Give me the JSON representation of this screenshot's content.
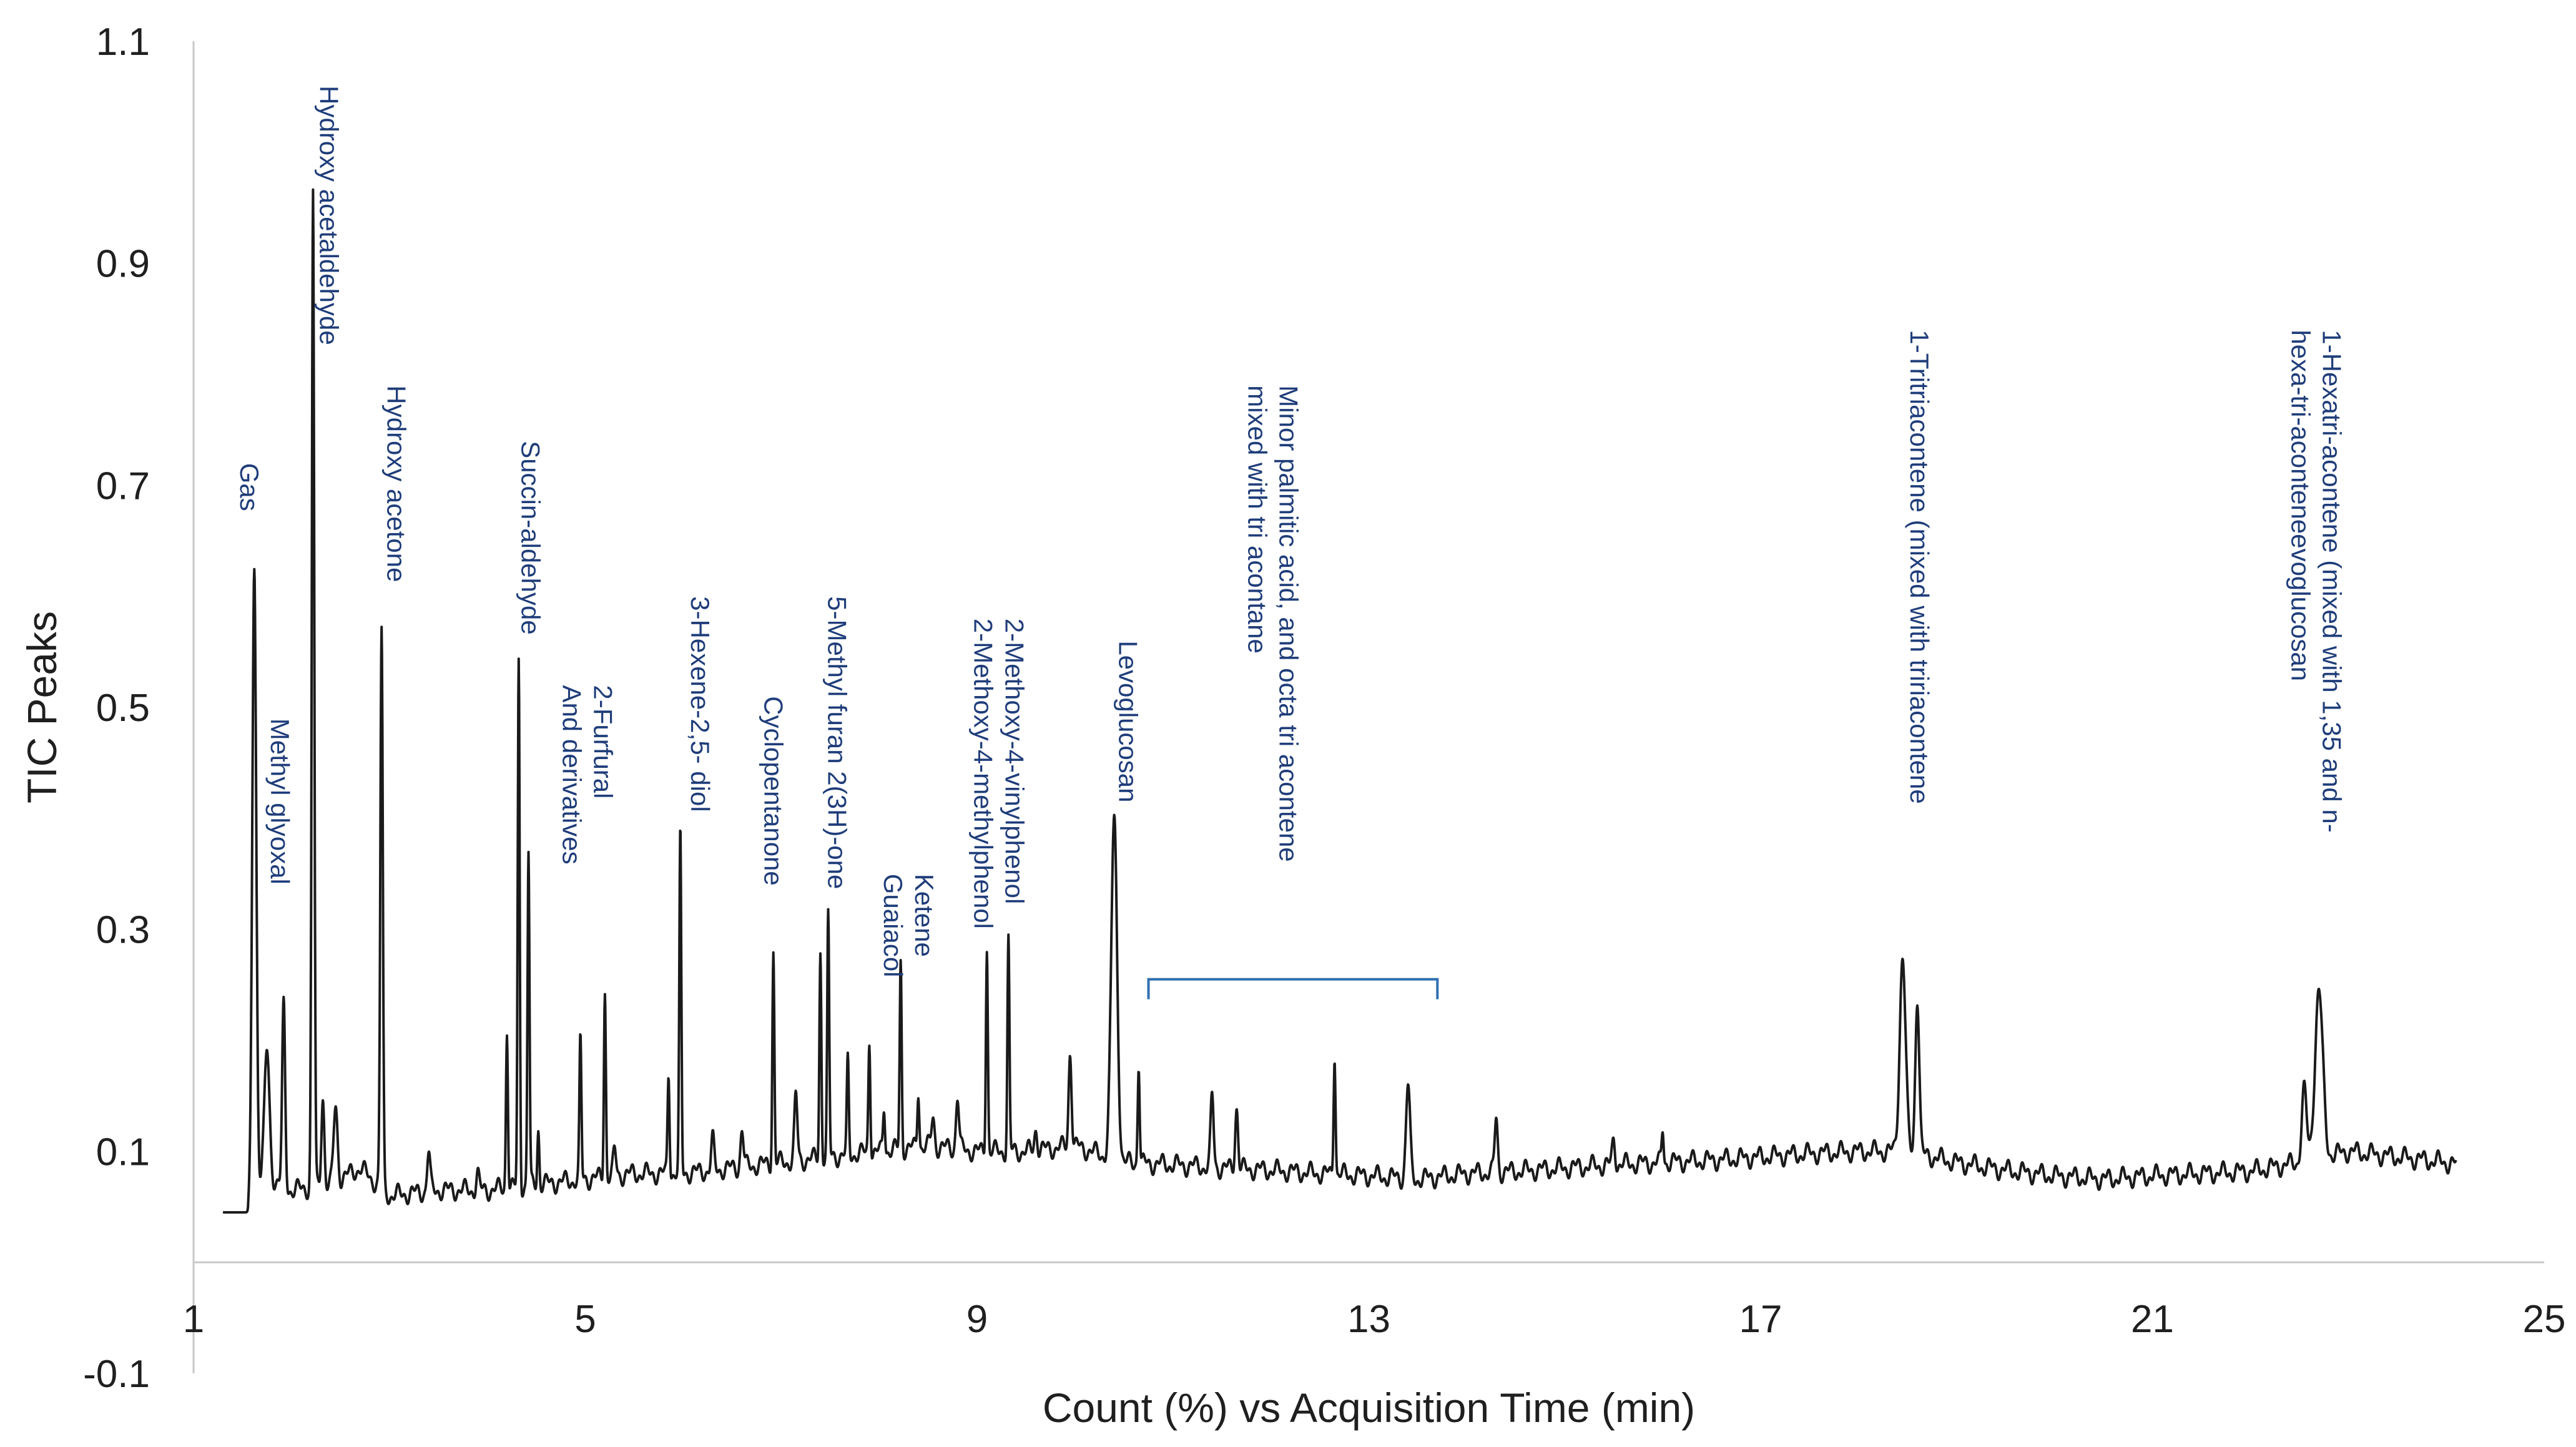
{
  "chart_data": {
    "type": "line",
    "title": "",
    "xlabel": "Count (%) vs Acquisition Time (min)",
    "ylabel": "TIC Peaks",
    "xlim": [
      1,
      25
    ],
    "ylim": [
      -0.1,
      1.1
    ],
    "x_ticks": [
      1,
      5,
      9,
      13,
      17,
      21,
      25
    ],
    "y_ticks": [
      -0.1,
      0.1,
      0.3,
      0.5,
      0.7,
      0.9,
      1.1
    ],
    "x_tick_labels": [
      "1",
      "5",
      "9",
      "13",
      "17",
      "21",
      "25"
    ],
    "y_tick_labels": [
      "-0.1",
      "0.1",
      "0.3",
      "0.5",
      "0.7",
      "0.9",
      "1.1"
    ],
    "grid": false,
    "baseline": [
      [
        1.3,
        0.045
      ],
      [
        1.55,
        0.045
      ],
      [
        1.7,
        0.08
      ],
      [
        2.0,
        0.065
      ],
      [
        2.4,
        0.07
      ],
      [
        2.7,
        0.085
      ],
      [
        3.0,
        0.06
      ],
      [
        3.5,
        0.065
      ],
      [
        4.0,
        0.065
      ],
      [
        4.5,
        0.07
      ],
      [
        5.0,
        0.075
      ],
      [
        5.5,
        0.08
      ],
      [
        6.0,
        0.08
      ],
      [
        6.5,
        0.085
      ],
      [
        7.0,
        0.09
      ],
      [
        7.5,
        0.095
      ],
      [
        8.0,
        0.1
      ],
      [
        8.5,
        0.105
      ],
      [
        9.0,
        0.1
      ],
      [
        9.5,
        0.1
      ],
      [
        10.0,
        0.105
      ],
      [
        10.5,
        0.09
      ],
      [
        11.0,
        0.088
      ],
      [
        11.5,
        0.085
      ],
      [
        12.0,
        0.083
      ],
      [
        12.5,
        0.08
      ],
      [
        13.0,
        0.078
      ],
      [
        13.5,
        0.075
      ],
      [
        14.0,
        0.08
      ],
      [
        14.5,
        0.082
      ],
      [
        15.0,
        0.085
      ],
      [
        15.5,
        0.088
      ],
      [
        16.0,
        0.09
      ],
      [
        16.5,
        0.092
      ],
      [
        17.0,
        0.095
      ],
      [
        17.5,
        0.098
      ],
      [
        18.0,
        0.1
      ],
      [
        18.5,
        0.1
      ],
      [
        19.0,
        0.09
      ],
      [
        19.5,
        0.083
      ],
      [
        20.0,
        0.078
      ],
      [
        20.5,
        0.075
      ],
      [
        21.0,
        0.078
      ],
      [
        21.5,
        0.08
      ],
      [
        22.0,
        0.082
      ],
      [
        22.5,
        0.09
      ],
      [
        23.0,
        0.1
      ],
      [
        23.5,
        0.095
      ],
      [
        24.0,
        0.09
      ],
      [
        24.1,
        0.088
      ]
    ],
    "peaks": [
      {
        "x": 1.62,
        "y": 0.63,
        "w": 0.04
      },
      {
        "x": 1.75,
        "y": 0.19,
        "w": 0.05
      },
      {
        "x": 1.92,
        "y": 0.23,
        "w": 0.03
      },
      {
        "x": 2.22,
        "y": 0.965,
        "w": 0.025
      },
      {
        "x": 2.32,
        "y": 0.15,
        "w": 0.03
      },
      {
        "x": 2.45,
        "y": 0.14,
        "w": 0.04
      },
      {
        "x": 2.92,
        "y": 0.57,
        "w": 0.025
      },
      {
        "x": 3.4,
        "y": 0.1,
        "w": 0.03
      },
      {
        "x": 3.9,
        "y": 0.08,
        "w": 0.03
      },
      {
        "x": 4.2,
        "y": 0.21,
        "w": 0.02
      },
      {
        "x": 4.32,
        "y": 0.54,
        "w": 0.02
      },
      {
        "x": 4.42,
        "y": 0.37,
        "w": 0.02
      },
      {
        "x": 4.52,
        "y": 0.12,
        "w": 0.02
      },
      {
        "x": 4.95,
        "y": 0.2,
        "w": 0.02
      },
      {
        "x": 5.2,
        "y": 0.245,
        "w": 0.02
      },
      {
        "x": 5.3,
        "y": 0.1,
        "w": 0.03
      },
      {
        "x": 5.85,
        "y": 0.17,
        "w": 0.02
      },
      {
        "x": 5.97,
        "y": 0.385,
        "w": 0.02
      },
      {
        "x": 6.3,
        "y": 0.11,
        "w": 0.03
      },
      {
        "x": 6.6,
        "y": 0.12,
        "w": 0.03
      },
      {
        "x": 6.92,
        "y": 0.28,
        "w": 0.02
      },
      {
        "x": 7.15,
        "y": 0.15,
        "w": 0.03
      },
      {
        "x": 7.4,
        "y": 0.28,
        "w": 0.02
      },
      {
        "x": 7.48,
        "y": 0.31,
        "w": 0.02
      },
      {
        "x": 7.68,
        "y": 0.18,
        "w": 0.02
      },
      {
        "x": 7.9,
        "y": 0.2,
        "w": 0.02
      },
      {
        "x": 8.05,
        "y": 0.14,
        "w": 0.02
      },
      {
        "x": 8.22,
        "y": 0.27,
        "w": 0.02
      },
      {
        "x": 8.4,
        "y": 0.155,
        "w": 0.02
      },
      {
        "x": 8.55,
        "y": 0.13,
        "w": 0.03
      },
      {
        "x": 8.8,
        "y": 0.15,
        "w": 0.03
      },
      {
        "x": 9.1,
        "y": 0.285,
        "w": 0.02
      },
      {
        "x": 9.32,
        "y": 0.29,
        "w": 0.02
      },
      {
        "x": 9.6,
        "y": 0.12,
        "w": 0.03
      },
      {
        "x": 9.95,
        "y": 0.19,
        "w": 0.03
      },
      {
        "x": 10.4,
        "y": 0.4,
        "w": 0.06
      },
      {
        "x": 10.65,
        "y": 0.18,
        "w": 0.02
      },
      {
        "x": 11.4,
        "y": 0.15,
        "w": 0.03
      },
      {
        "x": 11.65,
        "y": 0.14,
        "w": 0.03
      },
      {
        "x": 12.65,
        "y": 0.19,
        "w": 0.02
      },
      {
        "x": 13.4,
        "y": 0.16,
        "w": 0.04
      },
      {
        "x": 14.3,
        "y": 0.13,
        "w": 0.03
      },
      {
        "x": 15.5,
        "y": 0.11,
        "w": 0.03
      },
      {
        "x": 16.0,
        "y": 0.12,
        "w": 0.02
      },
      {
        "x": 18.45,
        "y": 0.275,
        "w": 0.06
      },
      {
        "x": 18.6,
        "y": 0.24,
        "w": 0.04
      },
      {
        "x": 22.55,
        "y": 0.155,
        "w": 0.05
      },
      {
        "x": 22.7,
        "y": 0.245,
        "w": 0.08
      }
    ],
    "annotations": [
      {
        "lines": [
          "Gas"
        ],
        "x": 1.55,
        "y_top": 0.72
      },
      {
        "lines": [
          "Methyl glyoxal"
        ],
        "x": 1.86,
        "y_top": 0.49
      },
      {
        "lines": [
          "Hydroxy acetaldehyde"
        ],
        "x": 2.36,
        "y_top": 1.06
      },
      {
        "lines": [
          "Hydroxy acetone"
        ],
        "x": 3.05,
        "y_top": 0.79
      },
      {
        "lines": [
          "Succin-aldehyde"
        ],
        "x": 4.42,
        "y_top": 0.74
      },
      {
        "lines": [
          "2-Furfural",
          "And derivatives"
        ],
        "x": 5.0,
        "y_top": 0.52
      },
      {
        "lines": [
          "3-Hexene-2,5- diol"
        ],
        "x": 6.15,
        "y_top": 0.6
      },
      {
        "lines": [
          "Cyclopentanone"
        ],
        "x": 6.9,
        "y_top": 0.51
      },
      {
        "lines": [
          "5-Methyl furan 2(3H)-one"
        ],
        "x": 7.55,
        "y_top": 0.6
      },
      {
        "lines": [
          "Ketene",
          "Guaiacol"
        ],
        "x": 8.28,
        "y_top": 0.35
      },
      {
        "lines": [
          "2-Methoxy-4-vinylphenol",
          "2-Methoxy-4-methylphenol"
        ],
        "x": 9.2,
        "y_top": 0.58
      },
      {
        "lines": [
          "Levoglucosan"
        ],
        "x": 10.52,
        "y_top": 0.56
      },
      {
        "lines": [
          "Minor palmitic acid, and octa tri acontene",
          "mixed with tri acontane"
        ],
        "x": 12.0,
        "y_top": 0.79
      },
      {
        "lines": [
          "1-Tritriacontene (mixed with tririacontene"
        ],
        "x": 18.6,
        "y_top": 0.84
      },
      {
        "lines": [
          "1-Hexatri-acontene (mixed with 1,35 and n-",
          "hexa-tri-aconteneevoglucosan"
        ],
        "x": 22.65,
        "y_top": 0.84
      }
    ],
    "bracket": {
      "x_start": 10.75,
      "x_end": 13.7,
      "y": 0.255,
      "tick": 0.018
    }
  }
}
